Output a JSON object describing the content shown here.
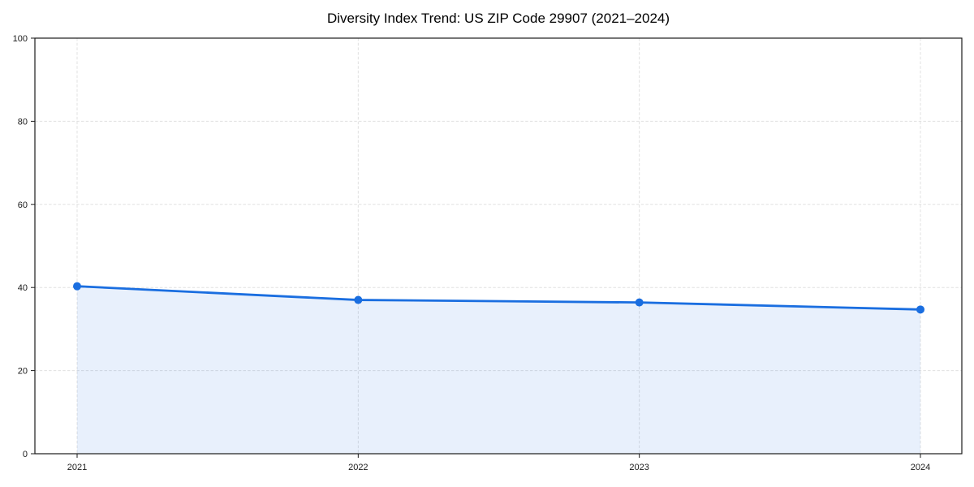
{
  "chart_data": {
    "type": "line",
    "title": "Diversity Index Trend: US ZIP Code 29907 (2021–2024)",
    "x": [
      "2021",
      "2022",
      "2023",
      "2024"
    ],
    "series": [
      {
        "name": "Diversity Index",
        "values": [
          40.3,
          37.0,
          36.4,
          34.7
        ]
      }
    ],
    "xlabel": "",
    "ylabel": "",
    "ylim": [
      0,
      100
    ],
    "yticks": [
      0,
      20,
      40,
      60,
      80,
      100
    ],
    "grid": "dashed, horizontal and vertical",
    "legend": "none",
    "marker": "circle",
    "area_fill": true,
    "fill_opacity": 0.1,
    "colors": {
      "line": "#1a6ee0",
      "fill_base": "#1a6ee0",
      "grid": "#e0e0e0",
      "axis": "#1a1a1a",
      "text": "#1a1a1a",
      "background": "#ffffff"
    }
  }
}
